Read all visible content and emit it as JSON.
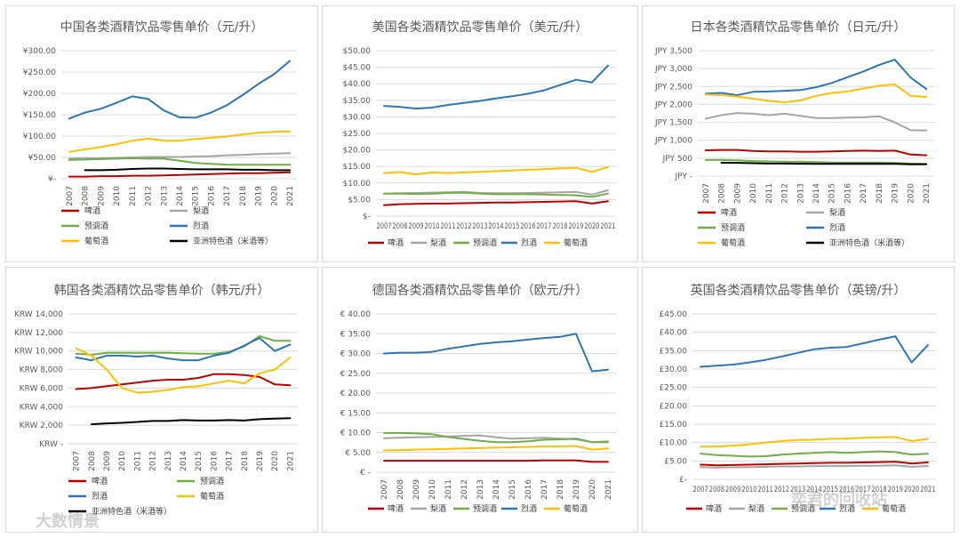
{
  "palette": {
    "啤酒": "#c00000",
    "梨酒": "#a5a5a5",
    "预调酒": "#70ad47",
    "烈酒": "#2e75b6",
    "葡萄酒": "#ffc000",
    "亚洲特色酒（米酒等）": "#000000"
  },
  "watermarks": {
    "left": "大数情景",
    "right": "奕君的回收站"
  },
  "chart_data": [
    {
      "type": "line",
      "title": "中国各类酒精饮品零售单价（元/升）",
      "categories": [
        "2007",
        "2008",
        "2009",
        "2010",
        "2011",
        "2012",
        "2013",
        "2014",
        "2015",
        "2016",
        "2017",
        "2018",
        "2019",
        "2020",
        "2021"
      ],
      "ylim": [
        0,
        300
      ],
      "yticks": [
        0,
        50,
        100,
        150,
        200,
        250,
        300
      ],
      "ytick_labels": [
        "¥-",
        "¥50.00",
        "¥100.00",
        "¥150.00",
        "¥200.00",
        "¥250.00",
        "¥300.00"
      ],
      "legend_columns": 2,
      "series": [
        {
          "name": "啤酒",
          "values": [
            5,
            5,
            6,
            6,
            7,
            7,
            8,
            9,
            10,
            11,
            12,
            13,
            13,
            14,
            15
          ]
        },
        {
          "name": "梨酒",
          "values": [
            47,
            48,
            48,
            49,
            50,
            51,
            51,
            51,
            52,
            53,
            55,
            56,
            58,
            59,
            60
          ]
        },
        {
          "name": "预调酒",
          "values": [
            44,
            45,
            46,
            47,
            48,
            47,
            47,
            42,
            37,
            35,
            33,
            33,
            33,
            33,
            33
          ]
        },
        {
          "name": "烈酒",
          "values": [
            141,
            155,
            164,
            178,
            193,
            187,
            160,
            144,
            143,
            155,
            172,
            196,
            222,
            245,
            276
          ]
        },
        {
          "name": "葡萄酒",
          "values": [
            63,
            69,
            74,
            81,
            89,
            94,
            89,
            89,
            93,
            96,
            99,
            104,
            108,
            110,
            111
          ]
        },
        {
          "name": "亚洲特色酒（米酒等）",
          "values": [
            null,
            20,
            20,
            21,
            23,
            24,
            24,
            23,
            22,
            22,
            22,
            21,
            21,
            20,
            20
          ]
        }
      ]
    },
    {
      "type": "line",
      "title": "美国各类酒精饮品零售单价（美元/升）",
      "categories": [
        "2007",
        "2008",
        "2009",
        "2010",
        "2011",
        "2012",
        "2013",
        "2014",
        "2015",
        "2016",
        "2017",
        "2018",
        "2019",
        "2020",
        "2021"
      ],
      "ylim": [
        0,
        50
      ],
      "yticks": [
        0,
        5,
        10,
        15,
        20,
        25,
        30,
        35,
        40,
        45,
        50
      ],
      "ytick_labels": [
        "$-",
        "$5.00",
        "$10.00",
        "$15.00",
        "$20.00",
        "$25.00",
        "$30.00",
        "$35.00",
        "$40.00",
        "$45.00",
        "$50.00"
      ],
      "legend_columns": 5,
      "series": [
        {
          "name": "啤酒",
          "values": [
            3.3,
            3.6,
            3.7,
            3.8,
            3.8,
            3.9,
            4.0,
            4.1,
            4.1,
            4.2,
            4.3,
            4.4,
            4.5,
            3.8,
            4.5
          ]
        },
        {
          "name": "梨酒",
          "values": [
            6.8,
            6.9,
            7.0,
            7.1,
            7.2,
            7.3,
            7.0,
            6.9,
            6.9,
            7.0,
            7.1,
            7.2,
            7.3,
            6.5,
            7.8
          ]
        },
        {
          "name": "预调酒",
          "values": [
            6.8,
            6.8,
            6.7,
            6.8,
            7.0,
            7.1,
            6.8,
            6.6,
            6.6,
            6.6,
            6.5,
            6.4,
            6.3,
            5.8,
            6.8
          ]
        },
        {
          "name": "烈酒",
          "values": [
            33.3,
            33.0,
            32.5,
            32.8,
            33.6,
            34.2,
            34.8,
            35.6,
            36.2,
            37.0,
            38.0,
            39.6,
            41.2,
            40.4,
            45.5
          ]
        },
        {
          "name": "葡萄酒",
          "values": [
            13.0,
            13.3,
            12.6,
            13.2,
            13.0,
            13.2,
            13.4,
            13.6,
            13.8,
            14.0,
            14.2,
            14.4,
            14.6,
            13.4,
            14.8
          ]
        }
      ]
    },
    {
      "type": "line",
      "title": "日本各类酒精饮品零售单价（日元/升）",
      "categories": [
        "2007",
        "2008",
        "2009",
        "2010",
        "2011",
        "2012",
        "2013",
        "2014",
        "2015",
        "2016",
        "2017",
        "2018",
        "2019",
        "2020",
        "2021"
      ],
      "ylim": [
        0,
        3500
      ],
      "yticks": [
        0,
        500,
        1000,
        1500,
        2000,
        2500,
        3000,
        3500
      ],
      "ytick_labels": [
        "JPY -",
        "JPY 500",
        "JPY 1,000",
        "JPY 1,500",
        "JPY 2,000",
        "JPY 2,500",
        "JPY 3,000",
        "JPY 3,500"
      ],
      "legend_columns": 2,
      "series": [
        {
          "name": "啤酒",
          "values": [
            720,
            730,
            730,
            700,
            690,
            690,
            680,
            680,
            690,
            700,
            710,
            700,
            710,
            600,
            580
          ]
        },
        {
          "name": "梨酒",
          "values": [
            1600,
            1700,
            1760,
            1740,
            1700,
            1740,
            1680,
            1620,
            1620,
            1630,
            1640,
            1670,
            1500,
            1280,
            1270
          ]
        },
        {
          "name": "预调酒",
          "values": [
            450,
            450,
            440,
            420,
            410,
            400,
            400,
            390,
            380,
            380,
            380,
            380,
            370,
            350,
            340
          ]
        },
        {
          "name": "烈酒",
          "values": [
            2300,
            2320,
            2260,
            2350,
            2360,
            2380,
            2400,
            2480,
            2600,
            2760,
            2920,
            3100,
            3250,
            2750,
            2430
          ]
        },
        {
          "name": "葡萄酒",
          "values": [
            2280,
            2260,
            2220,
            2160,
            2100,
            2060,
            2110,
            2240,
            2320,
            2360,
            2440,
            2520,
            2560,
            2240,
            2210
          ]
        },
        {
          "name": "亚洲特色酒（米酒等）",
          "values": [
            null,
            370,
            370,
            360,
            350,
            350,
            345,
            340,
            340,
            340,
            340,
            340,
            340,
            330,
            330
          ]
        }
      ]
    },
    {
      "type": "line",
      "title": "韩国各类酒精饮品零售单价（韩元/升）",
      "categories": [
        "2007",
        "2008",
        "2009",
        "2010",
        "2011",
        "2012",
        "2013",
        "2014",
        "2015",
        "2016",
        "2017",
        "2018",
        "2019",
        "2020",
        "2021"
      ],
      "ylim": [
        0,
        14000
      ],
      "yticks": [
        0,
        2000,
        4000,
        6000,
        8000,
        10000,
        12000,
        14000
      ],
      "ytick_labels": [
        "KRW -",
        "KRW 2,000",
        "KRW 4,000",
        "KRW 6,000",
        "KRW 8,000",
        "KRW 10,000",
        "KRW 12,000",
        "KRW 14,000"
      ],
      "legend_columns": 2,
      "series": [
        {
          "name": "啤酒",
          "values": [
            5900,
            6000,
            6200,
            6400,
            6600,
            6800,
            6900,
            6900,
            7100,
            7500,
            7500,
            7400,
            7200,
            6400,
            6300
          ]
        },
        {
          "name": "预调酒",
          "values": [
            9700,
            9600,
            9800,
            9800,
            9800,
            9800,
            9800,
            9750,
            9700,
            9700,
            9900,
            10500,
            11600,
            11100,
            11100
          ]
        },
        {
          "name": "烈酒",
          "values": [
            9300,
            9000,
            9500,
            9500,
            9400,
            9500,
            9200,
            9000,
            9000,
            9500,
            9800,
            10600,
            11400,
            10000,
            10700
          ]
        },
        {
          "name": "葡萄酒",
          "values": [
            10300,
            9500,
            8000,
            6000,
            5500,
            5600,
            5800,
            6100,
            6200,
            6500,
            6800,
            6500,
            7600,
            8000,
            9300
          ]
        },
        {
          "name": "亚洲特色酒（米酒等）",
          "values": [
            null,
            2100,
            2200,
            2250,
            2350,
            2450,
            2450,
            2550,
            2500,
            2500,
            2550,
            2500,
            2650,
            2700,
            2750
          ]
        }
      ]
    },
    {
      "type": "line",
      "title": "德国各类酒精饮品零售单价（欧元/升）",
      "categories": [
        "2007",
        "2008",
        "2009",
        "2010",
        "2011",
        "2012",
        "2013",
        "2014",
        "2015",
        "2016",
        "2017",
        "2018",
        "2019",
        "2020",
        "2021"
      ],
      "ylim": [
        0,
        40
      ],
      "yticks": [
        0,
        5,
        10,
        15,
        20,
        25,
        30,
        35,
        40
      ],
      "ytick_labels": [
        "€ -",
        "€ 5.00",
        "€ 10.00",
        "€ 15.00",
        "€ 20.00",
        "€ 25.00",
        "€ 30.00",
        "€ 35.00",
        "€ 40.00"
      ],
      "legend_columns": 5,
      "series": [
        {
          "name": "啤酒",
          "values": [
            2.9,
            2.9,
            2.9,
            2.9,
            2.9,
            2.9,
            2.9,
            2.9,
            2.9,
            2.9,
            3.0,
            3.0,
            3.0,
            2.6,
            2.6
          ]
        },
        {
          "name": "梨酒",
          "values": [
            8.6,
            8.7,
            8.8,
            8.9,
            9.0,
            9.2,
            9.3,
            8.8,
            8.5,
            8.6,
            8.7,
            8.5,
            8.3,
            7.6,
            7.8
          ]
        },
        {
          "name": "预调酒",
          "values": [
            9.9,
            9.9,
            9.8,
            9.6,
            8.9,
            8.4,
            7.9,
            7.6,
            7.6,
            7.8,
            8.2,
            8.3,
            8.5,
            7.6,
            7.6
          ]
        },
        {
          "name": "烈酒",
          "values": [
            30.0,
            30.2,
            30.2,
            30.4,
            31.2,
            31.8,
            32.4,
            32.8,
            33.1,
            33.5,
            33.9,
            34.2,
            35.0,
            25.5,
            25.9
          ]
        },
        {
          "name": "葡萄酒",
          "values": [
            5.5,
            5.6,
            5.7,
            5.8,
            5.9,
            6.0,
            6.1,
            6.2,
            6.3,
            6.4,
            6.5,
            6.5,
            6.6,
            5.7,
            6.0
          ]
        }
      ]
    },
    {
      "type": "line",
      "title": "英国各类酒精饮品零售单价（英镑/升）",
      "categories": [
        "2007",
        "2008",
        "2009",
        "2010",
        "2011",
        "2012",
        "2013",
        "2014",
        "2015",
        "2016",
        "2017",
        "2018",
        "2019",
        "2020",
        "2021"
      ],
      "ylim": [
        0,
        45
      ],
      "yticks": [
        0,
        5,
        10,
        15,
        20,
        25,
        30,
        35,
        40,
        45
      ],
      "ytick_labels": [
        "£-",
        "£5.00",
        "£10.00",
        "£15.00",
        "£20.00",
        "£25.00",
        "£30.00",
        "£35.00",
        "£40.00",
        "£45.00"
      ],
      "legend_columns": 5,
      "series": [
        {
          "name": "啤酒",
          "values": [
            4.0,
            3.8,
            3.9,
            4.0,
            4.1,
            4.2,
            4.3,
            4.4,
            4.5,
            4.5,
            4.6,
            4.7,
            4.8,
            4.3,
            4.6
          ]
        },
        {
          "name": "梨酒",
          "values": [
            3.3,
            3.2,
            3.3,
            3.3,
            3.4,
            3.5,
            3.5,
            3.6,
            3.6,
            3.6,
            3.7,
            3.7,
            3.8,
            3.4,
            3.6
          ]
        },
        {
          "name": "预调酒",
          "values": [
            7.0,
            6.6,
            6.4,
            6.2,
            6.3,
            6.7,
            7.0,
            7.2,
            7.4,
            7.2,
            7.4,
            7.6,
            7.4,
            6.7,
            7.0
          ]
        },
        {
          "name": "烈酒",
          "values": [
            30.6,
            30.9,
            31.2,
            31.8,
            32.5,
            33.4,
            34.4,
            35.4,
            35.8,
            36.0,
            37.0,
            38.0,
            38.9,
            31.8,
            36.5
          ]
        },
        {
          "name": "葡萄酒",
          "values": [
            8.9,
            8.9,
            9.2,
            9.5,
            10.0,
            10.4,
            10.7,
            10.8,
            11.0,
            11.1,
            11.3,
            11.4,
            11.5,
            10.4,
            11.0
          ]
        }
      ]
    }
  ]
}
